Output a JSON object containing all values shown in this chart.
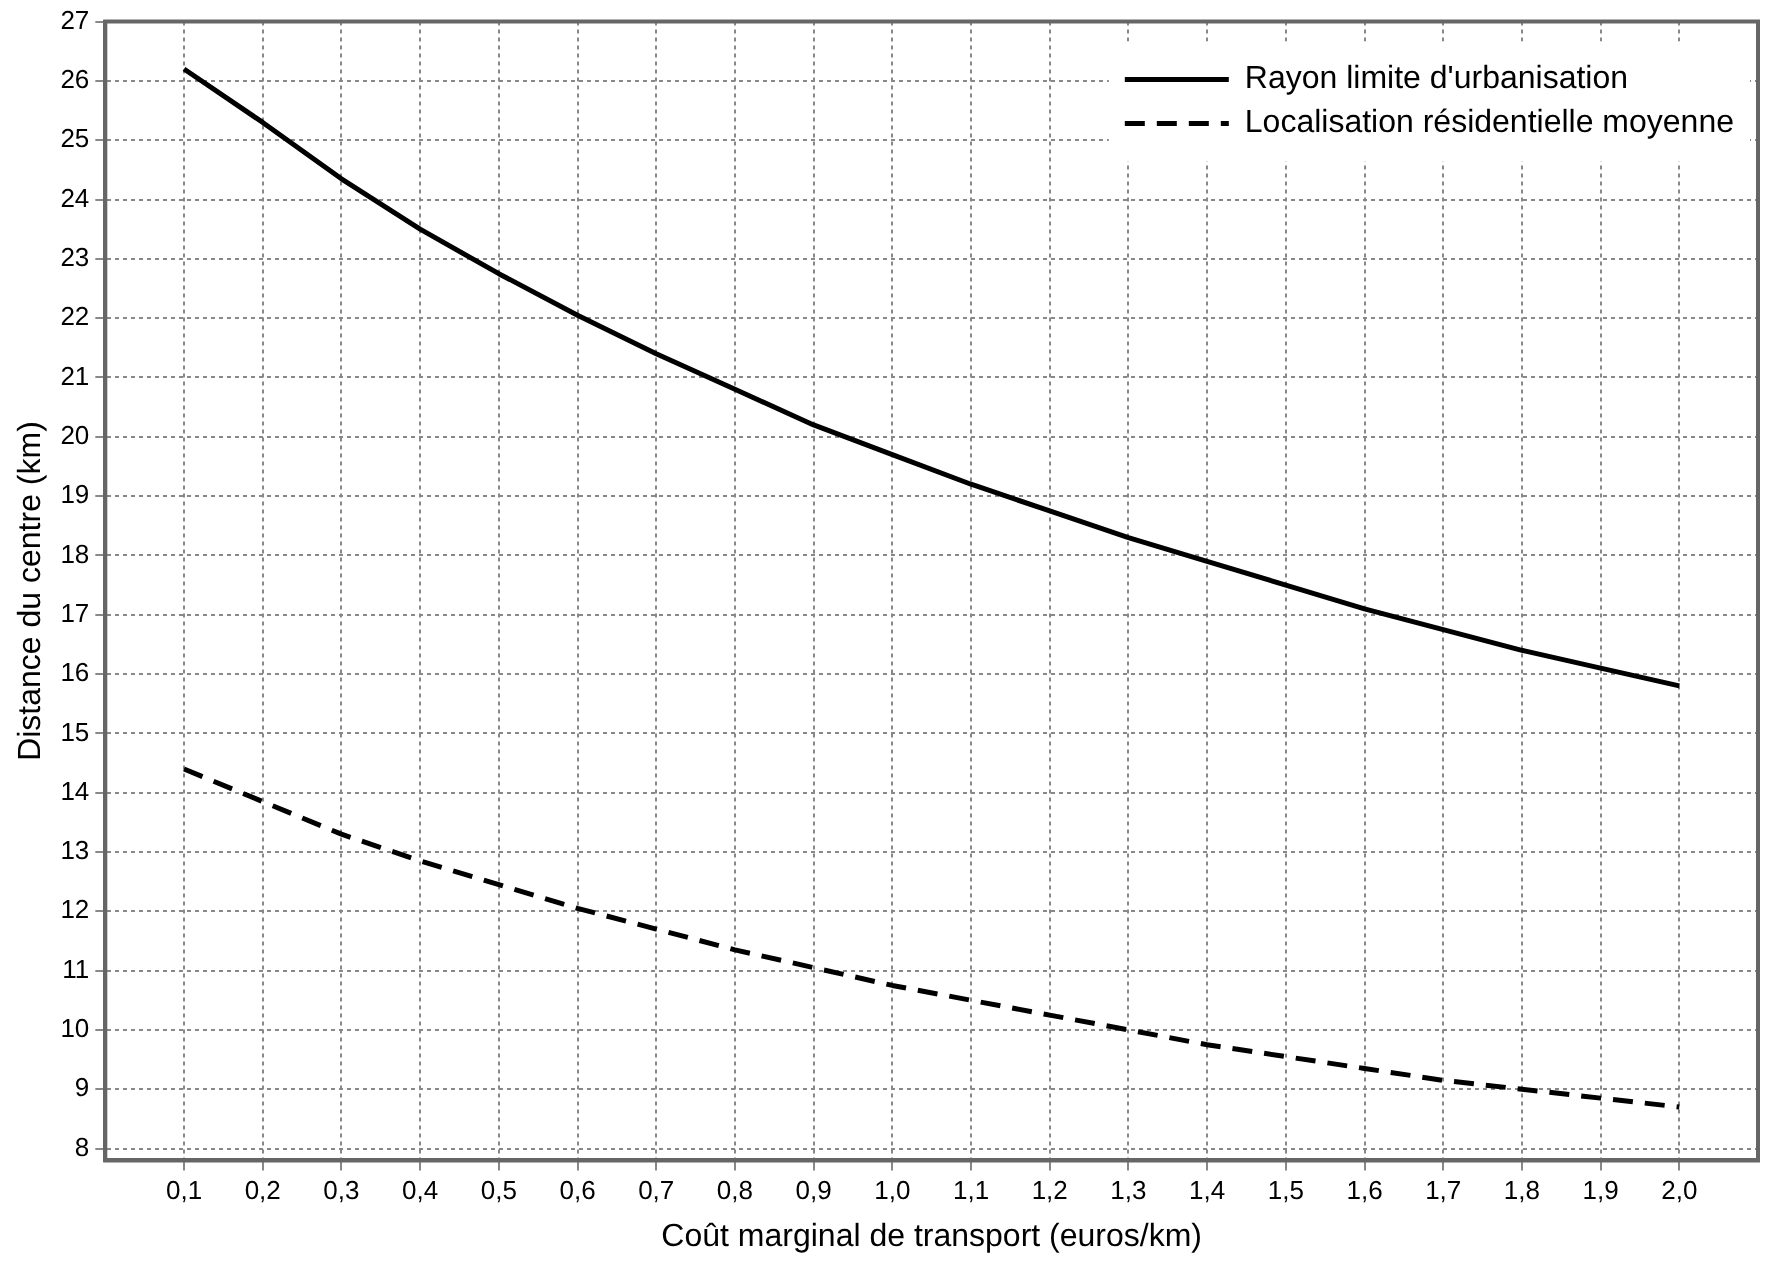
{
  "chart_data": {
    "type": "line",
    "xlabel": "Coût marginal de transport (euros/km)",
    "ylabel": "Distance du centre (km)",
    "x": [
      0.1,
      0.2,
      0.3,
      0.4,
      0.5,
      0.6,
      0.7,
      0.8,
      0.9,
      1.0,
      1.1,
      1.2,
      1.3,
      1.4,
      1.5,
      1.6,
      1.7,
      1.8,
      1.9,
      2.0
    ],
    "series": [
      {
        "name": "Rayon limite d'urbanisation",
        "color": "#000000",
        "line_style": "solid",
        "values": [
          26.2,
          25.3,
          24.35,
          23.5,
          22.75,
          22.05,
          21.4,
          20.8,
          20.2,
          19.7,
          19.2,
          18.75,
          18.3,
          17.9,
          17.5,
          17.1,
          16.75,
          16.4,
          16.1,
          15.8
        ]
      },
      {
        "name": "Localisation résidentielle moyenne",
        "color": "#000000",
        "line_style": "dashed",
        "values": [
          14.4,
          13.85,
          13.3,
          12.85,
          12.45,
          12.05,
          11.7,
          11.35,
          11.05,
          10.75,
          10.5,
          10.25,
          10.0,
          9.75,
          9.55,
          9.35,
          9.15,
          9.0,
          8.85,
          8.7
        ]
      }
    ],
    "xlim": [
      0,
      2.1
    ],
    "xticks": [
      {
        "value": 0.1,
        "label": "0,1"
      },
      {
        "value": 0.2,
        "label": "0,2"
      },
      {
        "value": 0.3,
        "label": "0,3"
      },
      {
        "value": 0.4,
        "label": "0,4"
      },
      {
        "value": 0.5,
        "label": "0,5"
      },
      {
        "value": 0.6,
        "label": "0,6"
      },
      {
        "value": 0.7,
        "label": "0,7"
      },
      {
        "value": 0.8,
        "label": "0,8"
      },
      {
        "value": 0.9,
        "label": "0,9"
      },
      {
        "value": 1.0,
        "label": "1,0"
      },
      {
        "value": 1.1,
        "label": "1,1"
      },
      {
        "value": 1.2,
        "label": "1,2"
      },
      {
        "value": 1.3,
        "label": "1,3"
      },
      {
        "value": 1.4,
        "label": "1,4"
      },
      {
        "value": 1.5,
        "label": "1,5"
      },
      {
        "value": 1.6,
        "label": "1,6"
      },
      {
        "value": 1.7,
        "label": "1,7"
      },
      {
        "value": 1.8,
        "label": "1,8"
      },
      {
        "value": 1.9,
        "label": "1,9"
      },
      {
        "value": 2.0,
        "label": "2,0"
      }
    ],
    "ylim": [
      7.8,
      27
    ],
    "yticks": [
      8,
      9,
      10,
      11,
      12,
      13,
      14,
      15,
      16,
      17,
      18,
      19,
      20,
      21,
      22,
      23,
      24,
      25,
      26,
      27
    ],
    "grid": true,
    "legend": "top right",
    "marker": "none"
  }
}
